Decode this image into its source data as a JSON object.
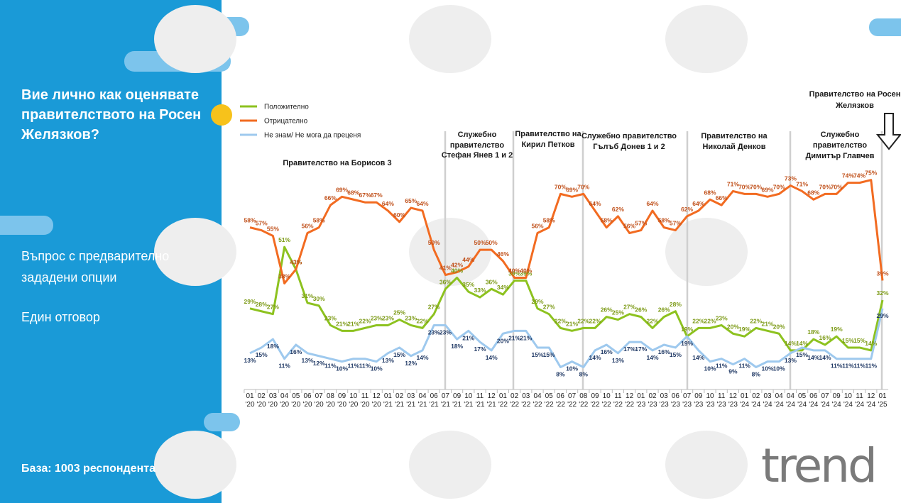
{
  "question": "Вие лично как оценявате правителството на Росен Желязков?",
  "note_type": "Въпрос с предварително зададени опции",
  "note_answer": "Един отговор",
  "base": "База:  1003 респондента",
  "logo": "trend",
  "chart_data": {
    "type": "line",
    "legend": "top-left",
    "ylim": [
      0,
      80
    ],
    "annotations": [
      {
        "lines": [
          "Правителство на Борисов 3"
        ]
      },
      {
        "lines": [
          "Служебно",
          "правителство",
          "Стефан Янев 1 и 2"
        ]
      },
      {
        "lines": [
          "Правителство на",
          "Кирил Петков"
        ]
      },
      {
        "lines": [
          "Служебно правителство",
          "Гълъб Донев 1 и 2"
        ]
      },
      {
        "lines": [
          "Правителство на",
          "Николай Денков"
        ]
      },
      {
        "lines": [
          "Служебно",
          "правителство",
          "Димитър Главчев"
        ]
      },
      {
        "lines": [
          "Правителство на Росен",
          "Желязков"
        ]
      }
    ],
    "categories": [
      "01 '20",
      "02 '20",
      "03 '20",
      "04 '20",
      "05 '20",
      "06 '20",
      "07 '20",
      "08 '20",
      "09 '20",
      "10 '20",
      "11 '20",
      "12 '20",
      "01 '21",
      "02 '21",
      "03 '21",
      "04 '21",
      "06 '21",
      "07 '21",
      "09 '21",
      "10 '21",
      "11 '21",
      "12 '21",
      "01 '22",
      "02 '22",
      "03 '22",
      "04 '22",
      "05 '22",
      "06 '22",
      "07 '22",
      "08 '22",
      "09 '22",
      "10 '22",
      "11 '22",
      "12 '22",
      "01 '23",
      "02 '23",
      "03 '23",
      "06 '23",
      "07 '23",
      "09 '23",
      "10 '23",
      "11 '23",
      "12 '23",
      "01 '24",
      "02 '24",
      "03 '24",
      "04 '24",
      "04 '24",
      "05 '24",
      "06 '24",
      "07 '24",
      "09 '24",
      "10 '24",
      "11 '24",
      "12 '24",
      "01 '25"
    ],
    "series": [
      {
        "name": "Положително",
        "color": "#8dc21f",
        "label_color": "#7c9a16",
        "label_side": "above",
        "values": [
          29,
          28,
          27,
          51,
          43,
          31,
          30,
          23,
          21,
          21,
          22,
          23,
          23,
          25,
          23,
          22,
          27,
          36,
          40,
          35,
          33,
          36,
          34,
          39,
          39,
          29,
          27,
          22,
          21,
          22,
          22,
          26,
          25,
          27,
          26,
          22,
          26,
          28,
          19,
          22,
          22,
          23,
          20,
          19,
          22,
          21,
          20,
          14,
          14,
          18,
          16,
          19,
          15,
          15,
          14,
          32
        ],
        "value_labels": [
          "29%",
          "28%",
          "27%",
          "51%",
          "43%",
          "31%",
          "30%",
          "23%",
          "21%",
          "21%",
          "22%",
          "23%",
          "23%",
          "25%",
          "23%",
          "22%",
          "27%",
          "36%",
          "40%",
          "35%",
          "33%",
          "36%",
          "34%",
          "39%",
          "39%",
          "29%",
          "27%",
          "22%",
          "21%",
          "22%",
          "22%",
          "26%",
          "25%",
          "27%",
          "26%",
          "22%",
          "26%",
          "28%",
          "19%",
          "22%",
          "22%",
          "23%",
          "20%",
          "19%",
          "22%",
          "21%",
          "20%",
          "14%",
          "14%",
          "18%",
          "16%",
          "19%",
          "15%",
          "15%",
          "14%",
          "32%"
        ]
      },
      {
        "name": "Отрицателно",
        "color": "#f26b21",
        "label_color": "#c0501a",
        "label_side": "above",
        "values": [
          58,
          57,
          55,
          38,
          43,
          56,
          58,
          66,
          69,
          68,
          67,
          67,
          64,
          60,
          65,
          64,
          50,
          41,
          42,
          44,
          50,
          50,
          46,
          40,
          40,
          56,
          58,
          70,
          69,
          70,
          64,
          58,
          62,
          56,
          57,
          64,
          58,
          57,
          62,
          64,
          68,
          66,
          71,
          70,
          70,
          69,
          70,
          73,
          71,
          68,
          70,
          70,
          74,
          74,
          75,
          39
        ],
        "value_labels": [
          "58%",
          "57%",
          "55%",
          "38%",
          "43%",
          "56%",
          "58%",
          "66%",
          "69%",
          "68%",
          "67%",
          "67%",
          "64%",
          "60%",
          "65%",
          "64%",
          "50%",
          "41%",
          "42%",
          "44%",
          "50%",
          "50%",
          "46%",
          "40%",
          "40%",
          "56%",
          "58%",
          "70%",
          "69%",
          "70%",
          "64%",
          "58%",
          "62%",
          "56%",
          "57%",
          "64%",
          "58%",
          "57%",
          "62%",
          "64%",
          "68%",
          "66%",
          "71%",
          "70%",
          "70%",
          "69%",
          "70%",
          "73%",
          "71%",
          "68%",
          "70%",
          "70%",
          "74%",
          "74%",
          "75%",
          "39%"
        ]
      },
      {
        "name": "Не знам/ Не мога да преценя",
        "color": "#9ec9ee",
        "label_color": "#1f3864",
        "label_side": "below",
        "values": [
          13,
          15,
          18,
          11,
          16,
          13,
          12,
          11,
          10,
          11,
          11,
          10,
          13,
          15,
          12,
          14,
          23,
          23,
          18,
          21,
          17,
          14,
          20,
          21,
          21,
          15,
          15,
          8,
          10,
          8,
          14,
          16,
          13,
          17,
          17,
          14,
          16,
          15,
          19,
          14,
          10,
          11,
          9,
          11,
          8,
          10,
          10,
          13,
          15,
          14,
          14,
          11,
          11,
          11,
          11,
          29
        ],
        "value_labels": [
          "13%",
          "15%",
          "18%",
          "11%",
          "16%",
          "13%",
          "12%",
          "11%",
          "10%",
          "11%",
          "11%",
          "10%",
          "13%",
          "15%",
          "12%",
          "14%",
          "23%",
          "23%",
          "18%",
          "21%",
          "17%",
          "14%",
          "20%",
          "21%",
          "21%",
          "15%",
          "15%",
          "8%",
          "10%",
          "8%",
          "14%",
          "16%",
          "13%",
          "17%",
          "17%",
          "14%",
          "16%",
          "15%",
          "19%",
          "14%",
          "10%",
          "11%",
          "9%",
          "11%",
          "8%",
          "10%",
          "10%",
          "13%",
          "15%",
          "14%",
          "14%",
          "11%",
          "11%",
          "11%",
          "11%",
          "29%"
        ]
      }
    ]
  }
}
